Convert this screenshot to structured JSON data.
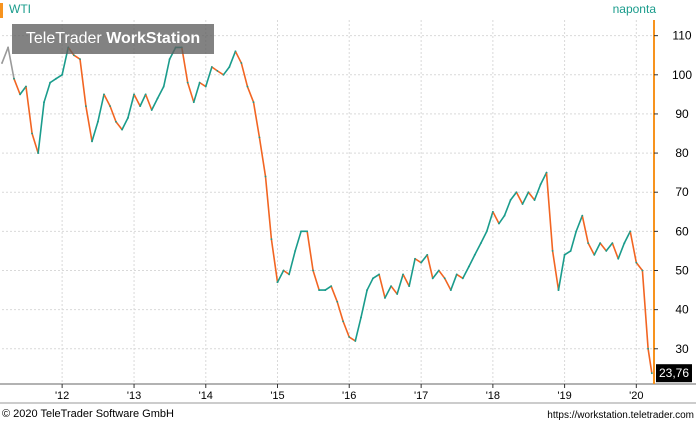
{
  "header": {
    "symbol": "WTI",
    "period": "naponta"
  },
  "watermark": {
    "brand": "TeleTrader",
    "product": "WorkStation"
  },
  "footer": {
    "copyright": "© 2020 TeleTrader Software GmbH",
    "url": "https://workstation.teletrader.com"
  },
  "colors": {
    "up": "#1a9c8c",
    "down": "#f26522",
    "early": "#9a9a9a",
    "grid": "#d9d9d9",
    "axis": "#f7931e",
    "last_price_bg": "#000000"
  },
  "chart_data": {
    "type": "line",
    "title": "",
    "xlabel": "",
    "ylabel": "",
    "x_tick_labels": [
      "'12",
      "'13",
      "'14",
      "'15",
      "'16",
      "'17",
      "'18",
      "'19",
      "'20"
    ],
    "y_tick_labels": [
      "30",
      "40",
      "50",
      "60",
      "70",
      "80",
      "90",
      "100",
      "110"
    ],
    "ylim": [
      21,
      114
    ],
    "grid": true,
    "last_price_label": "23,76",
    "series": [
      {
        "x": [
          "2011-03-01",
          "2011-04-01",
          "2011-05-01",
          "2011-06-01",
          "2011-07-01",
          "2011-08-01",
          "2011-09-01",
          "2011-10-01",
          "2011-11-01",
          "2011-12-01",
          "2012-01-01",
          "2012-02-01",
          "2012-03-01",
          "2012-04-01",
          "2012-05-01",
          "2012-06-01",
          "2012-07-01",
          "2012-08-01",
          "2012-09-01",
          "2012-10-01",
          "2012-11-01",
          "2012-12-01",
          "2013-01-01",
          "2013-02-01",
          "2013-03-01",
          "2013-04-01",
          "2013-05-01",
          "2013-06-01",
          "2013-07-01",
          "2013-08-01",
          "2013-09-01",
          "2013-10-01",
          "2013-11-01",
          "2013-12-01",
          "2014-01-01",
          "2014-02-01",
          "2014-03-01",
          "2014-04-01",
          "2014-05-01",
          "2014-06-01",
          "2014-07-01",
          "2014-08-01",
          "2014-09-01",
          "2014-10-01",
          "2014-11-01",
          "2014-12-01",
          "2015-01-01",
          "2015-02-01",
          "2015-03-01",
          "2015-04-01",
          "2015-05-01",
          "2015-06-01",
          "2015-07-01",
          "2015-08-01",
          "2015-09-01",
          "2015-10-01",
          "2015-11-01",
          "2015-12-01",
          "2016-01-01",
          "2016-02-01",
          "2016-03-01",
          "2016-04-01",
          "2016-05-01",
          "2016-06-01",
          "2016-07-01",
          "2016-08-01",
          "2016-09-01",
          "2016-10-01",
          "2016-11-01",
          "2016-12-01",
          "2017-01-01",
          "2017-02-01",
          "2017-03-01",
          "2017-04-01",
          "2017-05-01",
          "2017-06-01",
          "2017-07-01",
          "2017-08-01",
          "2017-09-01",
          "2017-10-01",
          "2017-11-01",
          "2017-12-01",
          "2018-01-01",
          "2018-02-01",
          "2018-03-01",
          "2018-04-01",
          "2018-05-01",
          "2018-06-01",
          "2018-07-01",
          "2018-08-01",
          "2018-09-01",
          "2018-10-01",
          "2018-11-01",
          "2018-12-01",
          "2019-01-01",
          "2019-02-01",
          "2019-03-01",
          "2019-04-01",
          "2019-05-01",
          "2019-06-01",
          "2019-07-01",
          "2019-08-01",
          "2019-09-01",
          "2019-10-01",
          "2019-11-01",
          "2019-12-01",
          "2020-01-01",
          "2020-02-01",
          "2020-03-01",
          "2020-03-20"
        ],
        "values": [
          103,
          107,
          99,
          95,
          97,
          85,
          80,
          93,
          98,
          99,
          100,
          107,
          105,
          104,
          92,
          83,
          88,
          95,
          92,
          88,
          86,
          89,
          95,
          92,
          95,
          91,
          94,
          97,
          104,
          107,
          107,
          98,
          93,
          98,
          97,
          102,
          101,
          100,
          102,
          106,
          103,
          97,
          93,
          84,
          74,
          58,
          47,
          50,
          49,
          55,
          60,
          60,
          50,
          45,
          45,
          46,
          42,
          37,
          33,
          32,
          38,
          45,
          48,
          49,
          43,
          46,
          44,
          49,
          46,
          53,
          52,
          54,
          48,
          50,
          48,
          45,
          49,
          48,
          51,
          54,
          57,
          60,
          65,
          62,
          64,
          68,
          70,
          67,
          70,
          68,
          72,
          75,
          55,
          45,
          54,
          55,
          60,
          64,
          57,
          54,
          57,
          55,
          57,
          53,
          57,
          60,
          52,
          50,
          30,
          23.76
        ]
      }
    ]
  }
}
